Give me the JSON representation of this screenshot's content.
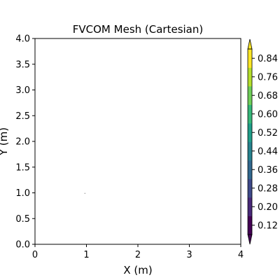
{
  "chart_data": {
    "type": "heatmap",
    "title": "FVCOM Mesh (Cartesian)",
    "xlabel": "X (m)",
    "ylabel": "Y (m)",
    "xlim": [
      0,
      4
    ],
    "ylim": [
      0,
      4
    ],
    "x_ticks": [
      0,
      1,
      2,
      3,
      4
    ],
    "x_tick_labels": [
      "0",
      "1",
      "2",
      "3",
      "4"
    ],
    "y_ticks": [
      0.0,
      0.5,
      1.0,
      1.5,
      2.0,
      2.5,
      3.0,
      3.5,
      4.0
    ],
    "y_tick_labels": [
      "0.0",
      "0.5",
      "1.0",
      "1.5",
      "2.0",
      "2.5",
      "3.0",
      "3.5",
      "4.0"
    ],
    "grid": false,
    "mesh_points": [
      {
        "x": 0.97,
        "y": 0.99
      }
    ],
    "colorbar": {
      "colormap": "viridis",
      "extend": "both",
      "range": [
        0.08,
        0.88
      ],
      "ticks": [
        0.12,
        0.2,
        0.28,
        0.36,
        0.44,
        0.52,
        0.6,
        0.68,
        0.76,
        0.84
      ],
      "tick_labels": [
        "0.12",
        "0.20",
        "0.28",
        "0.36",
        "0.44",
        "0.52",
        "0.60",
        "0.68",
        "0.76",
        "0.84"
      ],
      "colors": [
        "#440154",
        "#482878",
        "#3e4989",
        "#31688e",
        "#26828e",
        "#1f9e89",
        "#35b779",
        "#6ece58",
        "#b5de2b",
        "#fde725"
      ]
    }
  }
}
